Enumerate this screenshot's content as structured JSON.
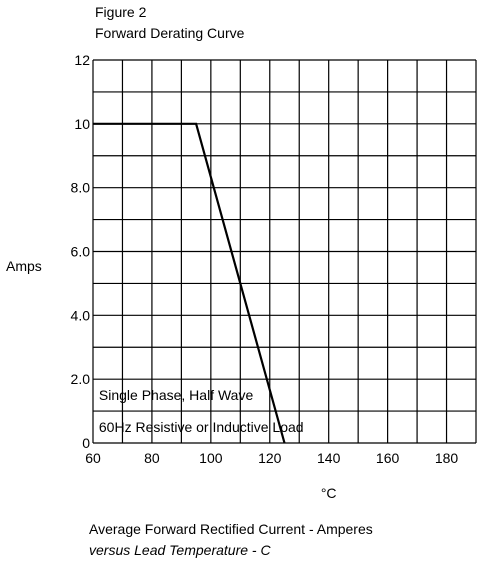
{
  "figure_label": "Figure 2",
  "figure_title": "Forward Derating Curve",
  "caption_line1": "Average Forward Rectified Current  -  Amperes",
  "caption_line2": "versus Lead Temperature  - C",
  "colors": {
    "line": "#000000",
    "grid": "#000000",
    "background": "#ffffff"
  },
  "chart_data": {
    "type": "line",
    "title": "Forward Derating Curve",
    "xlabel": "°C",
    "ylabel": "Amps",
    "xlim": [
      60,
      190
    ],
    "ylim": [
      0,
      12
    ],
    "x_ticks": [
      60,
      80,
      100,
      120,
      140,
      160,
      180
    ],
    "x_tick_labels": [
      "60",
      "80",
      "100",
      "120",
      "140",
      "160",
      "180"
    ],
    "y_ticks": [
      0,
      2,
      4,
      6,
      8,
      10,
      12
    ],
    "y_tick_labels": [
      "0",
      "2.0",
      "4.0",
      "6.0",
      "8.0",
      "10",
      "12"
    ],
    "grid": true,
    "x_grid_step": 10,
    "y_grid_step": 1,
    "series": [
      {
        "x": [
          60,
          95,
          125
        ],
        "y": [
          10,
          10,
          0
        ]
      }
    ],
    "annotations": [
      {
        "text": "Single Phase, Half Wave",
        "x": 62,
        "y": 1.5
      },
      {
        "text": "60Hz Resistive or Inductive Load",
        "x": 62,
        "y": 0.5
      }
    ]
  }
}
